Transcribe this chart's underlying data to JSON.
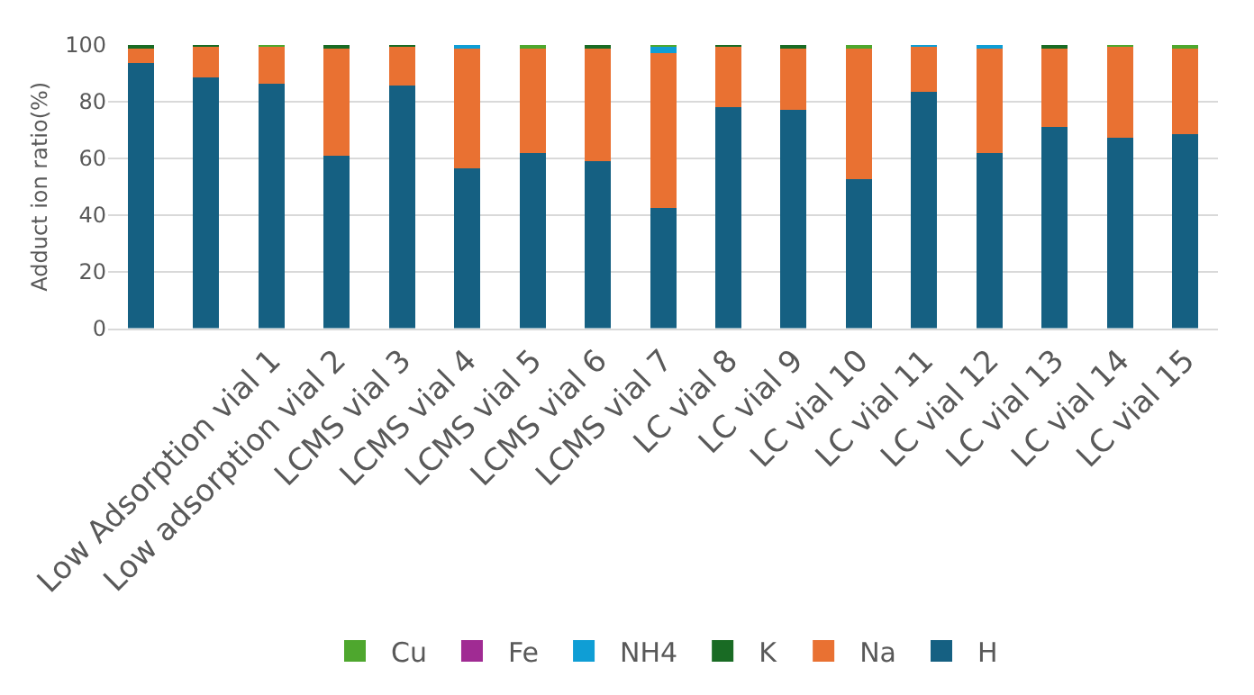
{
  "chart_data": {
    "type": "bar",
    "stacked": true,
    "ylabel": "Adduct ion ratio(%)",
    "categories": [
      null,
      null,
      "Low Adsorption vial 1",
      "Low adsorption vial 2",
      "LCMS vial 3",
      "LCMS vial 4",
      "LCMS vial 5",
      "LCMS vial 6",
      "LCMS vial 7",
      "LC vial 8",
      "LC vial 9",
      "LC vial 10",
      "LC vial 11",
      "LC vial 12",
      "LC vial 13",
      "LC vial 14",
      "LC vial 15"
    ],
    "series": [
      {
        "name": "H",
        "color": "#156082",
        "values": [
          93.6,
          88.7,
          86.4,
          60.9,
          85.8,
          56.4,
          61.7,
          59.0,
          42.4,
          78.2,
          77.2,
          52.5,
          83.5,
          61.9,
          71.2,
          67.3,
          68.5
        ]
      },
      {
        "name": "Na",
        "color": "#e97132",
        "values": [
          5.0,
          10.7,
          13.0,
          38.1,
          14.0,
          42.2,
          37.5,
          40.2,
          54.6,
          21.2,
          22.0,
          46.7,
          16.1,
          37.1,
          28.0,
          32.1,
          30.7
        ]
      },
      {
        "name": "K",
        "color": "#196b24",
        "values": [
          1.4,
          0.6,
          0,
          1.0,
          0.2,
          0,
          0,
          0.8,
          0,
          0.6,
          0.8,
          0,
          0,
          0,
          0.8,
          0,
          0
        ]
      },
      {
        "name": "NH4",
        "color": "#0f9ed5",
        "values": [
          0,
          0,
          0,
          0,
          0,
          1.4,
          0,
          0,
          2.5,
          0,
          0,
          0,
          0.4,
          1.0,
          0,
          0,
          0
        ]
      },
      {
        "name": "Fe",
        "color": "#a02b93",
        "values": [
          0,
          0,
          0,
          0,
          0,
          0,
          0,
          0,
          0,
          0,
          0,
          0,
          0,
          0,
          0,
          0,
          0
        ]
      },
      {
        "name": "Cu",
        "color": "#4ea72e",
        "values": [
          0,
          0,
          0.6,
          0,
          0,
          0,
          0.8,
          0,
          0.5,
          0,
          0,
          0.8,
          0,
          0,
          0,
          0.6,
          0.8
        ]
      }
    ],
    "ylim": [
      0,
      100
    ],
    "yticks": [
      0,
      20,
      40,
      60,
      80,
      100
    ],
    "grid": "y",
    "legend": "bottom"
  }
}
